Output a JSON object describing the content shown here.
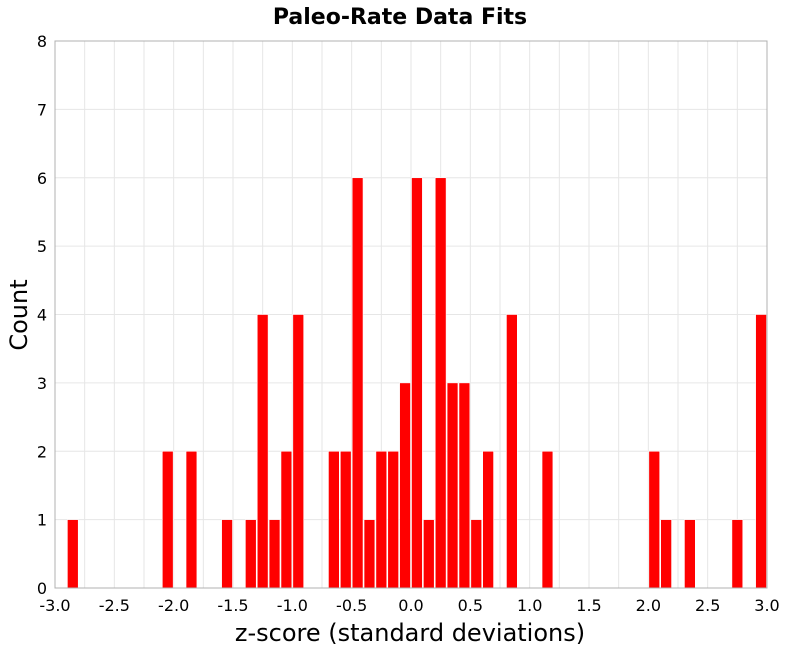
{
  "chart_data": {
    "type": "bar",
    "title": "Paleo-Rate Data Fits",
    "xlabel": "z-score (standard deviations)",
    "ylabel": "Count",
    "xlim": [
      -3.0,
      3.0
    ],
    "ylim": [
      0,
      8
    ],
    "grid": true,
    "bin_width": 0.1,
    "x_ticks": [
      "-3.0",
      "-2.5",
      "-2.0",
      "-1.5",
      "-1.0",
      "-0.5",
      "0.0",
      "0.5",
      "1.0",
      "1.5",
      "2.0",
      "2.5",
      "3.0"
    ],
    "y_ticks": [
      "0",
      "1",
      "2",
      "3",
      "4",
      "5",
      "6",
      "7",
      "8"
    ],
    "bar_color": "#ff0000",
    "bins": [
      {
        "x": -2.85,
        "count": 1
      },
      {
        "x": -2.05,
        "count": 2
      },
      {
        "x": -1.85,
        "count": 2
      },
      {
        "x": -1.55,
        "count": 1
      },
      {
        "x": -1.35,
        "count": 1
      },
      {
        "x": -1.25,
        "count": 4
      },
      {
        "x": -1.15,
        "count": 1
      },
      {
        "x": -1.05,
        "count": 2
      },
      {
        "x": -0.95,
        "count": 4
      },
      {
        "x": -0.65,
        "count": 2
      },
      {
        "x": -0.55,
        "count": 2
      },
      {
        "x": -0.45,
        "count": 6
      },
      {
        "x": -0.35,
        "count": 1
      },
      {
        "x": -0.25,
        "count": 2
      },
      {
        "x": -0.15,
        "count": 2
      },
      {
        "x": -0.05,
        "count": 3
      },
      {
        "x": 0.05,
        "count": 6
      },
      {
        "x": 0.15,
        "count": 1
      },
      {
        "x": 0.25,
        "count": 6
      },
      {
        "x": 0.35,
        "count": 3
      },
      {
        "x": 0.45,
        "count": 3
      },
      {
        "x": 0.55,
        "count": 1
      },
      {
        "x": 0.65,
        "count": 2
      },
      {
        "x": 0.85,
        "count": 4
      },
      {
        "x": 1.15,
        "count": 2
      },
      {
        "x": 2.05,
        "count": 2
      },
      {
        "x": 2.15,
        "count": 1
      },
      {
        "x": 2.35,
        "count": 1
      },
      {
        "x": 2.75,
        "count": 1
      },
      {
        "x": 2.95,
        "count": 4
      }
    ]
  }
}
